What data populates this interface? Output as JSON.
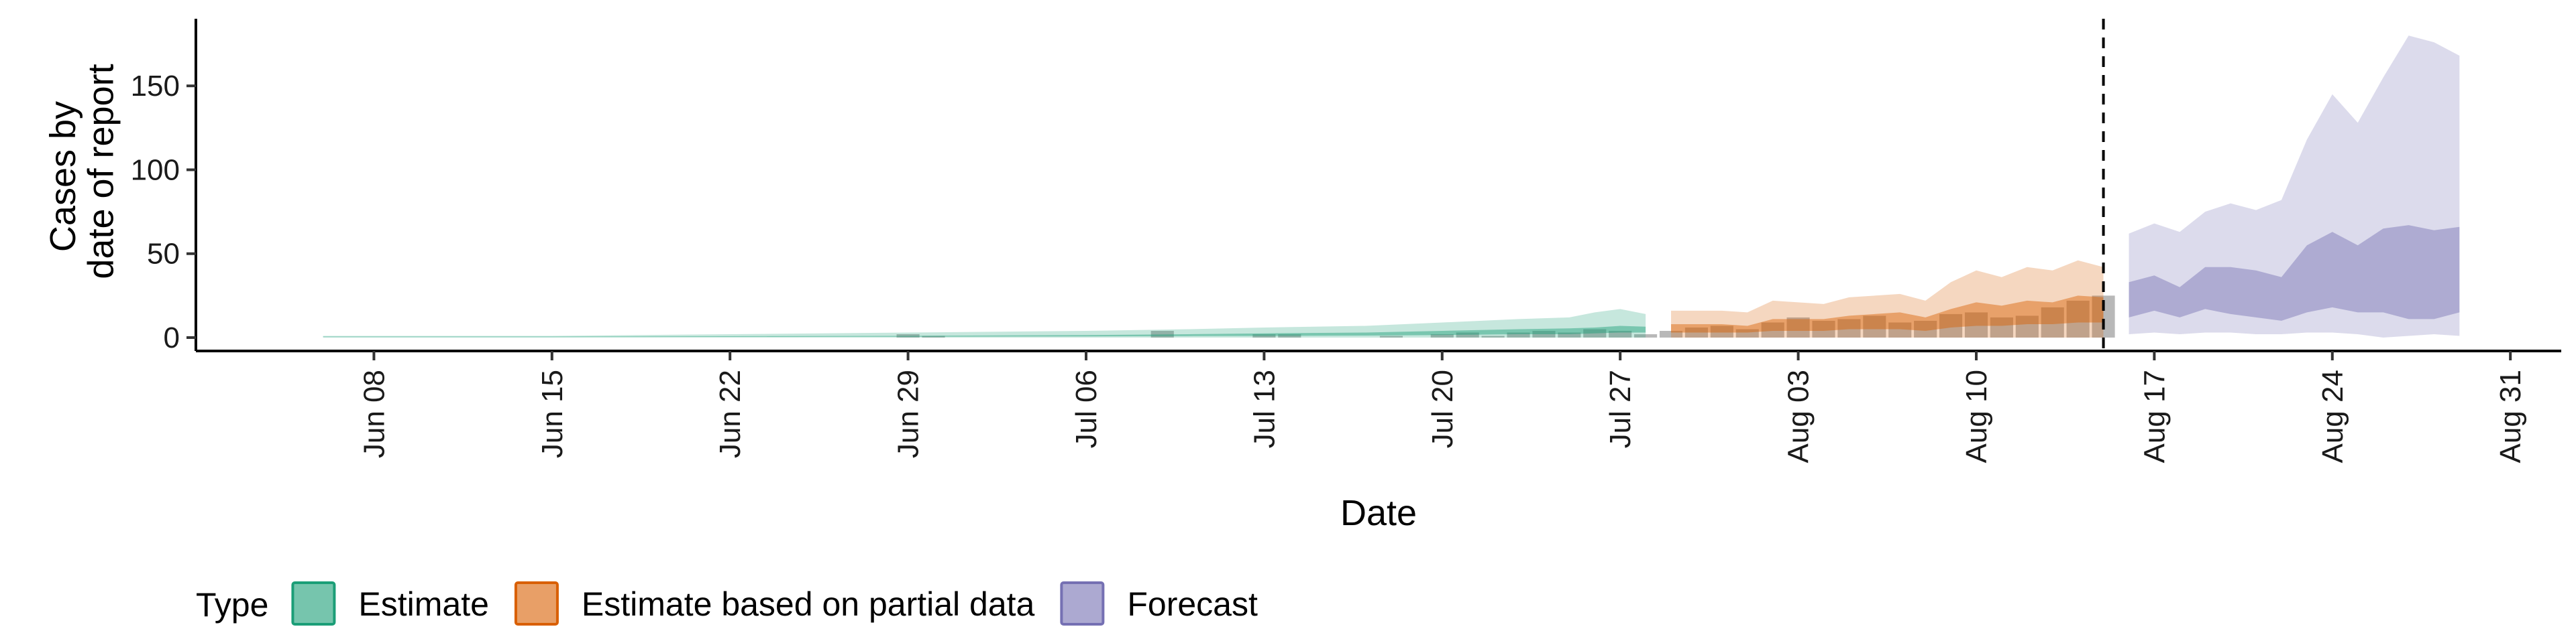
{
  "chart_data": {
    "type": "area",
    "title": "",
    "xlabel": "Date",
    "ylabel_lines": [
      "Cases by",
      "date of report"
    ],
    "ylim": [
      0,
      190
    ],
    "yticks": [
      0,
      50,
      100,
      150
    ],
    "xrange": [
      "2020-06-01",
      "2020-09-02"
    ],
    "xticks": [
      {
        "date": "2020-06-08",
        "label": "Jun 08"
      },
      {
        "date": "2020-06-15",
        "label": "Jun 15"
      },
      {
        "date": "2020-06-22",
        "label": "Jun 22"
      },
      {
        "date": "2020-06-29",
        "label": "Jun 29"
      },
      {
        "date": "2020-07-06",
        "label": "Jul 06"
      },
      {
        "date": "2020-07-13",
        "label": "Jul 13"
      },
      {
        "date": "2020-07-20",
        "label": "Jul 20"
      },
      {
        "date": "2020-07-27",
        "label": "Jul 27"
      },
      {
        "date": "2020-08-03",
        "label": "Aug 03"
      },
      {
        "date": "2020-08-10",
        "label": "Aug 10"
      },
      {
        "date": "2020-08-17",
        "label": "Aug 17"
      },
      {
        "date": "2020-08-24",
        "label": "Aug 24"
      },
      {
        "date": "2020-08-31",
        "label": "Aug 31"
      }
    ],
    "report_date": "2020-08-15",
    "legend": {
      "title": "Type",
      "position": "bottom",
      "items": [
        {
          "label": "Estimate",
          "color": "#1b9e77"
        },
        {
          "label": "Estimate based on partial data",
          "color": "#d95f02"
        },
        {
          "label": "Forecast",
          "color": "#7570b3"
        }
      ]
    },
    "bar_color": "#a0a0a0",
    "observed_cases": [
      {
        "date": "2020-06-29",
        "value": 2
      },
      {
        "date": "2020-06-30",
        "value": 1
      },
      {
        "date": "2020-07-09",
        "value": 4
      },
      {
        "date": "2020-07-13",
        "value": 2
      },
      {
        "date": "2020-07-14",
        "value": 2
      },
      {
        "date": "2020-07-18",
        "value": 1
      },
      {
        "date": "2020-07-20",
        "value": 2
      },
      {
        "date": "2020-07-21",
        "value": 3
      },
      {
        "date": "2020-07-22",
        "value": 1
      },
      {
        "date": "2020-07-23",
        "value": 3
      },
      {
        "date": "2020-07-24",
        "value": 4
      },
      {
        "date": "2020-07-25",
        "value": 3
      },
      {
        "date": "2020-07-26",
        "value": 5
      },
      {
        "date": "2020-07-27",
        "value": 4
      },
      {
        "date": "2020-07-28",
        "value": 2
      },
      {
        "date": "2020-07-29",
        "value": 4
      },
      {
        "date": "2020-07-30",
        "value": 6
      },
      {
        "date": "2020-07-31",
        "value": 7
      },
      {
        "date": "2020-08-01",
        "value": 5
      },
      {
        "date": "2020-08-02",
        "value": 9
      },
      {
        "date": "2020-08-03",
        "value": 12
      },
      {
        "date": "2020-08-04",
        "value": 10
      },
      {
        "date": "2020-08-05",
        "value": 11
      },
      {
        "date": "2020-08-06",
        "value": 13
      },
      {
        "date": "2020-08-07",
        "value": 9
      },
      {
        "date": "2020-08-08",
        "value": 10
      },
      {
        "date": "2020-08-09",
        "value": 14
      },
      {
        "date": "2020-08-10",
        "value": 15
      },
      {
        "date": "2020-08-11",
        "value": 12
      },
      {
        "date": "2020-08-12",
        "value": 13
      },
      {
        "date": "2020-08-13",
        "value": 18
      },
      {
        "date": "2020-08-14",
        "value": 22
      },
      {
        "date": "2020-08-15",
        "value": 25
      }
    ],
    "series": [
      {
        "name": "Estimate",
        "color": "#1b9e77",
        "points": [
          {
            "date": "2020-06-06",
            "lo90": 0,
            "hi90": 1,
            "lo50": 0.3,
            "hi50": 0.6
          },
          {
            "date": "2020-06-15",
            "lo90": 0,
            "hi90": 1,
            "lo50": 0.3,
            "hi50": 0.6
          },
          {
            "date": "2020-06-22",
            "lo90": 0,
            "hi90": 2,
            "lo50": 0.4,
            "hi50": 0.8
          },
          {
            "date": "2020-06-29",
            "lo90": 0,
            "hi90": 3,
            "lo50": 0.5,
            "hi50": 1
          },
          {
            "date": "2020-07-06",
            "lo90": 0,
            "hi90": 4,
            "lo50": 0.7,
            "hi50": 1.5
          },
          {
            "date": "2020-07-10",
            "lo90": 0,
            "hi90": 5,
            "lo50": 0.9,
            "hi50": 2
          },
          {
            "date": "2020-07-13",
            "lo90": 0,
            "hi90": 6,
            "lo50": 1,
            "hi50": 2.5
          },
          {
            "date": "2020-07-17",
            "lo90": 0,
            "hi90": 7,
            "lo50": 1.2,
            "hi50": 3
          },
          {
            "date": "2020-07-20",
            "lo90": 0,
            "hi90": 9,
            "lo50": 1.5,
            "hi50": 4
          },
          {
            "date": "2020-07-23",
            "lo90": 0,
            "hi90": 11,
            "lo50": 2,
            "hi50": 5
          },
          {
            "date": "2020-07-25",
            "lo90": 0,
            "hi90": 12,
            "lo50": 2,
            "hi50": 5.5
          },
          {
            "date": "2020-07-26",
            "lo90": 0,
            "hi90": 15,
            "lo50": 2.5,
            "hi50": 6
          },
          {
            "date": "2020-07-27",
            "lo90": 0,
            "hi90": 17,
            "lo50": 3,
            "hi50": 7
          },
          {
            "date": "2020-07-28",
            "lo90": 0,
            "hi90": 14,
            "lo50": 3,
            "hi50": 6.5
          }
        ]
      },
      {
        "name": "Estimate based on partial data",
        "color": "#d95f02",
        "points": [
          {
            "date": "2020-07-29",
            "lo90": 0,
            "hi90": 16,
            "lo50": 3,
            "hi50": 8
          },
          {
            "date": "2020-07-31",
            "lo90": 0,
            "hi90": 16,
            "lo50": 3,
            "hi50": 8
          },
          {
            "date": "2020-08-01",
            "lo90": 0,
            "hi90": 15,
            "lo50": 3,
            "hi50": 7
          },
          {
            "date": "2020-08-02",
            "lo90": 0,
            "hi90": 22,
            "lo50": 4,
            "hi50": 11
          },
          {
            "date": "2020-08-04",
            "lo90": 0,
            "hi90": 20,
            "lo50": 4,
            "hi50": 11
          },
          {
            "date": "2020-08-05",
            "lo90": 0,
            "hi90": 24,
            "lo50": 5,
            "hi50": 13
          },
          {
            "date": "2020-08-07",
            "lo90": 0,
            "hi90": 26,
            "lo50": 5,
            "hi50": 15
          },
          {
            "date": "2020-08-08",
            "lo90": 0,
            "hi90": 22,
            "lo50": 4,
            "hi50": 12
          },
          {
            "date": "2020-08-09",
            "lo90": 0,
            "hi90": 33,
            "lo50": 6,
            "hi50": 17
          },
          {
            "date": "2020-08-10",
            "lo90": 0,
            "hi90": 40,
            "lo50": 7,
            "hi50": 21
          },
          {
            "date": "2020-08-11",
            "lo90": 0,
            "hi90": 36,
            "lo50": 7,
            "hi50": 19
          },
          {
            "date": "2020-08-12",
            "lo90": 0,
            "hi90": 42,
            "lo50": 8,
            "hi50": 22
          },
          {
            "date": "2020-08-13",
            "lo90": 0,
            "hi90": 40,
            "lo50": 8,
            "hi50": 21
          },
          {
            "date": "2020-08-14",
            "lo90": 0,
            "hi90": 46,
            "lo50": 9,
            "hi50": 25
          },
          {
            "date": "2020-08-15",
            "lo90": 0,
            "hi90": 42,
            "lo50": 9,
            "hi50": 24
          }
        ]
      },
      {
        "name": "Forecast",
        "color": "#7570b3",
        "points": [
          {
            "date": "2020-08-16",
            "lo90": 2,
            "hi90": 62,
            "lo50": 12,
            "hi50": 33
          },
          {
            "date": "2020-08-17",
            "lo90": 3,
            "hi90": 68,
            "lo50": 16,
            "hi50": 37
          },
          {
            "date": "2020-08-18",
            "lo90": 2,
            "hi90": 63,
            "lo50": 12,
            "hi50": 30
          },
          {
            "date": "2020-08-19",
            "lo90": 3,
            "hi90": 75,
            "lo50": 17,
            "hi50": 42
          },
          {
            "date": "2020-08-20",
            "lo90": 3,
            "hi90": 80,
            "lo50": 14,
            "hi50": 42
          },
          {
            "date": "2020-08-21",
            "lo90": 2,
            "hi90": 76,
            "lo50": 12,
            "hi50": 40
          },
          {
            "date": "2020-08-22",
            "lo90": 2,
            "hi90": 82,
            "lo50": 10,
            "hi50": 36
          },
          {
            "date": "2020-08-23",
            "lo90": 3,
            "hi90": 118,
            "lo50": 15,
            "hi50": 55
          },
          {
            "date": "2020-08-24",
            "lo90": 3,
            "hi90": 145,
            "lo50": 18,
            "hi50": 63
          },
          {
            "date": "2020-08-25",
            "lo90": 2,
            "hi90": 128,
            "lo50": 15,
            "hi50": 55
          },
          {
            "date": "2020-08-26",
            "lo90": 0,
            "hi90": 155,
            "lo50": 15,
            "hi50": 65
          },
          {
            "date": "2020-08-27",
            "lo90": 1,
            "hi90": 180,
            "lo50": 11,
            "hi50": 67
          },
          {
            "date": "2020-08-28",
            "lo90": 2,
            "hi90": 176,
            "lo50": 11,
            "hi50": 64
          },
          {
            "date": "2020-08-29",
            "lo90": 1,
            "hi90": 168,
            "lo50": 15,
            "hi50": 66
          }
        ]
      }
    ]
  }
}
